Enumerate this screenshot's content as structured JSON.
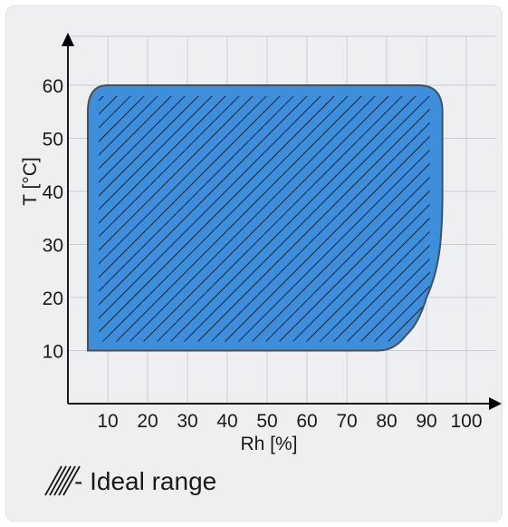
{
  "chart_data": {
    "type": "area",
    "xlabel": "Rh [%]",
    "ylabel": "T [°C]",
    "xlim": [
      0,
      100
    ],
    "ylim": [
      0,
      70
    ],
    "xticks": [
      10,
      20,
      30,
      40,
      50,
      60,
      70,
      80,
      90,
      100
    ],
    "yticks": [
      10,
      20,
      30,
      40,
      50,
      60
    ],
    "grid": true,
    "region": {
      "fill_color": "#3d8fdc",
      "outline_color": "#4a4f55",
      "hatch_color": "#1b2430",
      "boundary": [
        {
          "x": 5,
          "y": 10
        },
        {
          "x": 5,
          "y": 55
        },
        {
          "x": 10,
          "y": 60
        },
        {
          "x": 88,
          "y": 60
        },
        {
          "x": 94,
          "y": 55
        },
        {
          "x": 94,
          "y": 40
        },
        {
          "x": 90,
          "y": 20
        },
        {
          "x": 85,
          "y": 13
        },
        {
          "x": 78,
          "y": 10
        }
      ]
    },
    "legend": {
      "text": "- Ideal range",
      "placement": "bottom-left"
    }
  }
}
